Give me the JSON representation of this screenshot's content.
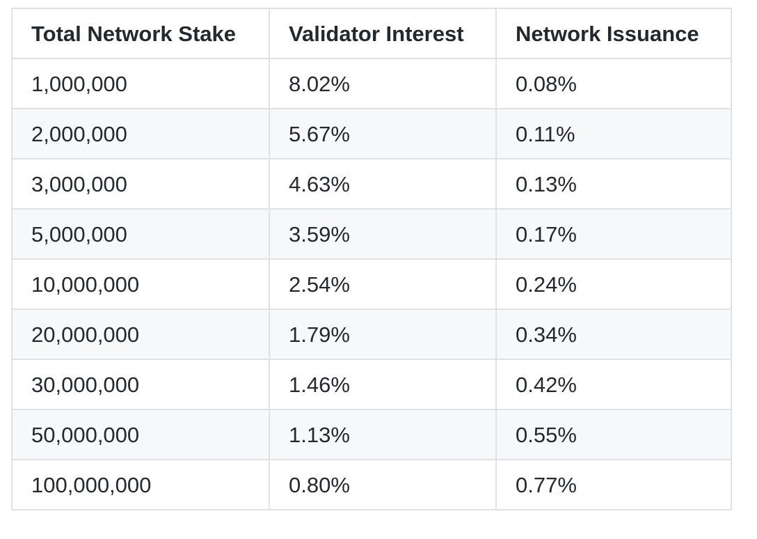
{
  "table": {
    "headers": [
      "Total Network Stake",
      "Validator Interest",
      "Network Issuance"
    ],
    "rows": [
      [
        "1,000,000",
        "8.02%",
        "0.08%"
      ],
      [
        "2,000,000",
        "5.67%",
        "0.11%"
      ],
      [
        "3,000,000",
        "4.63%",
        "0.13%"
      ],
      [
        "5,000,000",
        "3.59%",
        "0.17%"
      ],
      [
        "10,000,000",
        "2.54%",
        "0.24%"
      ],
      [
        "20,000,000",
        "1.79%",
        "0.34%"
      ],
      [
        "30,000,000",
        "1.46%",
        "0.42%"
      ],
      [
        "50,000,000",
        "1.13%",
        "0.55%"
      ],
      [
        "100,000,000",
        "0.80%",
        "0.77%"
      ]
    ]
  },
  "colors": {
    "border": "#dfe2e5",
    "row_alt_background": "#f6f8fa",
    "text": "#24292e"
  }
}
